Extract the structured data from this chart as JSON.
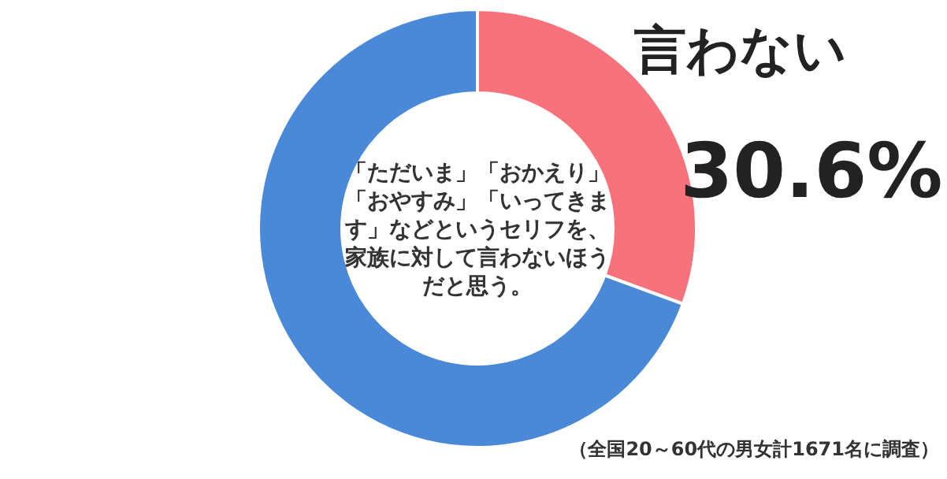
{
  "chart_data": {
    "type": "donut",
    "title": "「ただいま」「おかえり」「おやすみ」「いってきます」などというセリフを、家族に対して言わないほうだと思う。",
    "categories": [
      "言わない",
      null
    ],
    "values": [
      30.6,
      69.4
    ],
    "colors": [
      "#f7727b",
      "#4a89d8"
    ],
    "value_labels": [
      "30.6%",
      null
    ],
    "annotations": [
      "（全国20～60代の男女計1671名に調査）"
    ]
  }
}
